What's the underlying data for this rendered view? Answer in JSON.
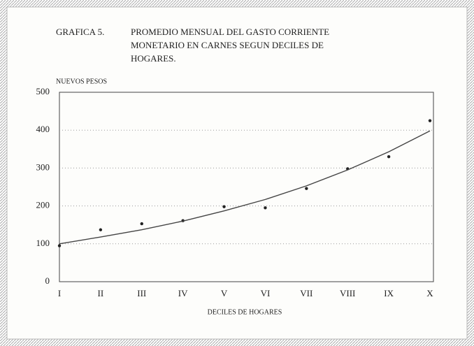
{
  "chart_data": {
    "type": "line",
    "figure_label": "GRAFICA 5.",
    "title_lines": [
      "PROMEDIO MENSUAL DEL GASTO CORRIENTE",
      "MONETARIO EN CARNES  SEGUN DECILES DE",
      "HOGARES."
    ],
    "ylabel": "NUEVOS PESOS",
    "xlabel": "DECILES DE HOGARES",
    "categories": [
      "I",
      "II",
      "III",
      "IV",
      "V",
      "VI",
      "VII",
      "VIII",
      "IX",
      "X"
    ],
    "series": [
      {
        "mode": "markers",
        "color": "#222222",
        "values": [
          95,
          137,
          153,
          161,
          198,
          195,
          246,
          298,
          330,
          425
        ]
      },
      {
        "mode": "line",
        "color": "#444444",
        "values": [
          100,
          118,
          137,
          160,
          187,
          217,
          253,
          295,
          343,
          398
        ]
      }
    ],
    "ylim": [
      0,
      500
    ],
    "yticks": [
      0,
      100,
      200,
      300,
      400,
      500
    ],
    "grid": true
  }
}
